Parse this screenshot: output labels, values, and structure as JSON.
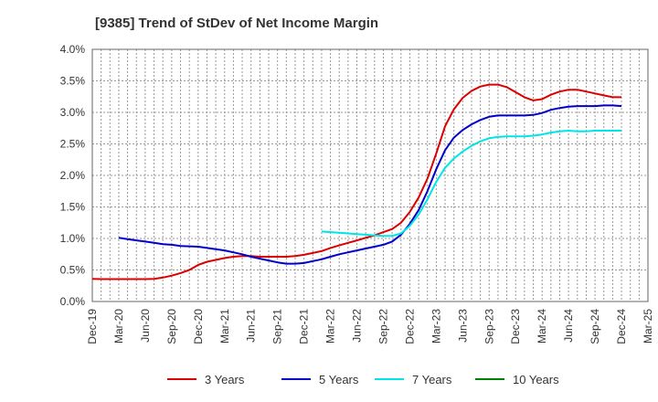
{
  "chart_data": {
    "type": "line",
    "title": "[9385]  Trend of StDev of Net Income Margin",
    "xlabel": "",
    "ylabel": "",
    "ylim": [
      0,
      4.0
    ],
    "y_unit": "%",
    "y_ticks": [
      "0.0%",
      "0.5%",
      "1.0%",
      "1.5%",
      "2.0%",
      "2.5%",
      "3.0%",
      "3.5%",
      "4.0%"
    ],
    "x_ticks": [
      "Dec-19",
      "Mar-20",
      "Jun-20",
      "Sep-20",
      "Dec-20",
      "Mar-21",
      "Jun-21",
      "Sep-21",
      "Dec-21",
      "Mar-22",
      "Jun-22",
      "Sep-22",
      "Dec-22",
      "Mar-23",
      "Jun-23",
      "Sep-23",
      "Dec-23",
      "Mar-24",
      "Jun-24",
      "Sep-24",
      "Dec-24",
      "Mar-25"
    ],
    "grid": true,
    "legend_position": "bottom",
    "series": [
      {
        "name": "3 Years",
        "color": "#dd0000",
        "points": [
          [
            "Dec-19",
            0.36
          ],
          [
            "Jan-20",
            0.355
          ],
          [
            "Feb-20",
            0.355
          ],
          [
            "Mar-20",
            0.355
          ],
          [
            "Apr-20",
            0.355
          ],
          [
            "May-20",
            0.355
          ],
          [
            "Jun-20",
            0.355
          ],
          [
            "Jul-20",
            0.36
          ],
          [
            "Aug-20",
            0.38
          ],
          [
            "Sep-20",
            0.41
          ],
          [
            "Oct-20",
            0.45
          ],
          [
            "Nov-20",
            0.5
          ],
          [
            "Dec-20",
            0.58
          ],
          [
            "Jan-21",
            0.63
          ],
          [
            "Feb-21",
            0.66
          ],
          [
            "Mar-21",
            0.69
          ],
          [
            "Apr-21",
            0.71
          ],
          [
            "May-21",
            0.72
          ],
          [
            "Jun-21",
            0.72
          ],
          [
            "Jul-21",
            0.71
          ],
          [
            "Aug-21",
            0.71
          ],
          [
            "Sep-21",
            0.71
          ],
          [
            "Oct-21",
            0.71
          ],
          [
            "Nov-21",
            0.72
          ],
          [
            "Dec-21",
            0.74
          ],
          [
            "Jan-22",
            0.77
          ],
          [
            "Feb-22",
            0.8
          ],
          [
            "Mar-22",
            0.85
          ],
          [
            "Apr-22",
            0.89
          ],
          [
            "May-22",
            0.93
          ],
          [
            "Jun-22",
            0.97
          ],
          [
            "Jul-22",
            1.01
          ],
          [
            "Aug-22",
            1.05
          ],
          [
            "Sep-22",
            1.1
          ],
          [
            "Oct-22",
            1.15
          ],
          [
            "Nov-22",
            1.25
          ],
          [
            "Dec-22",
            1.42
          ],
          [
            "Jan-23",
            1.65
          ],
          [
            "Feb-23",
            1.95
          ],
          [
            "Mar-23",
            2.35
          ],
          [
            "Apr-23",
            2.78
          ],
          [
            "May-23",
            3.05
          ],
          [
            "Jun-23",
            3.23
          ],
          [
            "Jul-23",
            3.34
          ],
          [
            "Aug-23",
            3.41
          ],
          [
            "Sep-23",
            3.44
          ],
          [
            "Oct-23",
            3.44
          ],
          [
            "Nov-23",
            3.4
          ],
          [
            "Dec-23",
            3.32
          ],
          [
            "Jan-24",
            3.24
          ],
          [
            "Feb-24",
            3.19
          ],
          [
            "Mar-24",
            3.21
          ],
          [
            "Apr-24",
            3.28
          ],
          [
            "May-24",
            3.33
          ],
          [
            "Jun-24",
            3.36
          ],
          [
            "Jul-24",
            3.36
          ],
          [
            "Aug-24",
            3.33
          ],
          [
            "Sep-24",
            3.3
          ],
          [
            "Oct-24",
            3.27
          ],
          [
            "Nov-24",
            3.24
          ],
          [
            "Dec-24",
            3.24
          ]
        ]
      },
      {
        "name": "5 Years",
        "color": "#0000cc",
        "points": [
          [
            "Mar-20",
            1.01
          ],
          [
            "Apr-20",
            0.99
          ],
          [
            "May-20",
            0.97
          ],
          [
            "Jun-20",
            0.95
          ],
          [
            "Jul-20",
            0.93
          ],
          [
            "Aug-20",
            0.91
          ],
          [
            "Sep-20",
            0.9
          ],
          [
            "Oct-20",
            0.88
          ],
          [
            "Nov-20",
            0.875
          ],
          [
            "Dec-20",
            0.87
          ],
          [
            "Jan-21",
            0.85
          ],
          [
            "Feb-21",
            0.83
          ],
          [
            "Mar-21",
            0.81
          ],
          [
            "Apr-21",
            0.78
          ],
          [
            "May-21",
            0.75
          ],
          [
            "Jun-21",
            0.71
          ],
          [
            "Jul-21",
            0.68
          ],
          [
            "Aug-21",
            0.65
          ],
          [
            "Sep-21",
            0.62
          ],
          [
            "Oct-21",
            0.6
          ],
          [
            "Nov-21",
            0.6
          ],
          [
            "Dec-21",
            0.61
          ],
          [
            "Jan-22",
            0.64
          ],
          [
            "Feb-22",
            0.67
          ],
          [
            "Mar-22",
            0.71
          ],
          [
            "Apr-22",
            0.75
          ],
          [
            "May-22",
            0.78
          ],
          [
            "Jun-22",
            0.81
          ],
          [
            "Jul-22",
            0.84
          ],
          [
            "Aug-22",
            0.87
          ],
          [
            "Sep-22",
            0.9
          ],
          [
            "Oct-22",
            0.95
          ],
          [
            "Nov-22",
            1.06
          ],
          [
            "Dec-22",
            1.23
          ],
          [
            "Jan-23",
            1.45
          ],
          [
            "Feb-23",
            1.75
          ],
          [
            "Mar-23",
            2.1
          ],
          [
            "Apr-23",
            2.4
          ],
          [
            "May-23",
            2.6
          ],
          [
            "Jun-23",
            2.72
          ],
          [
            "Jul-23",
            2.81
          ],
          [
            "Aug-23",
            2.88
          ],
          [
            "Sep-23",
            2.93
          ],
          [
            "Oct-23",
            2.95
          ],
          [
            "Nov-23",
            2.95
          ],
          [
            "Dec-23",
            2.95
          ],
          [
            "Jan-24",
            2.95
          ],
          [
            "Feb-24",
            2.96
          ],
          [
            "Mar-24",
            2.99
          ],
          [
            "Apr-24",
            3.04
          ],
          [
            "May-24",
            3.07
          ],
          [
            "Jun-24",
            3.09
          ],
          [
            "Jul-24",
            3.1
          ],
          [
            "Aug-24",
            3.1
          ],
          [
            "Sep-24",
            3.1
          ],
          [
            "Oct-24",
            3.11
          ],
          [
            "Nov-24",
            3.11
          ],
          [
            "Dec-24",
            3.1
          ]
        ]
      },
      {
        "name": "7 Years",
        "color": "#00e5e5",
        "points": [
          [
            "Feb-22",
            1.11
          ],
          [
            "Mar-22",
            1.1
          ],
          [
            "Apr-22",
            1.09
          ],
          [
            "May-22",
            1.08
          ],
          [
            "Jun-22",
            1.07
          ],
          [
            "Jul-22",
            1.06
          ],
          [
            "Aug-22",
            1.05
          ],
          [
            "Sep-22",
            1.04
          ],
          [
            "Oct-22",
            1.04
          ],
          [
            "Nov-22",
            1.08
          ],
          [
            "Dec-22",
            1.2
          ],
          [
            "Jan-23",
            1.38
          ],
          [
            "Feb-23",
            1.62
          ],
          [
            "Mar-23",
            1.9
          ],
          [
            "Apr-23",
            2.12
          ],
          [
            "May-23",
            2.27
          ],
          [
            "Jun-23",
            2.38
          ],
          [
            "Jul-23",
            2.47
          ],
          [
            "Aug-23",
            2.54
          ],
          [
            "Sep-23",
            2.59
          ],
          [
            "Oct-23",
            2.61
          ],
          [
            "Nov-23",
            2.62
          ],
          [
            "Dec-23",
            2.62
          ],
          [
            "Jan-24",
            2.62
          ],
          [
            "Feb-24",
            2.63
          ],
          [
            "Mar-24",
            2.65
          ],
          [
            "Apr-24",
            2.68
          ],
          [
            "May-24",
            2.7
          ],
          [
            "Jun-24",
            2.71
          ],
          [
            "Jul-24",
            2.7
          ],
          [
            "Aug-24",
            2.7
          ],
          [
            "Sep-24",
            2.71
          ],
          [
            "Oct-24",
            2.71
          ],
          [
            "Nov-24",
            2.71
          ],
          [
            "Dec-24",
            2.71
          ]
        ]
      },
      {
        "name": "10 Years",
        "color": "#008000",
        "points": []
      }
    ]
  }
}
